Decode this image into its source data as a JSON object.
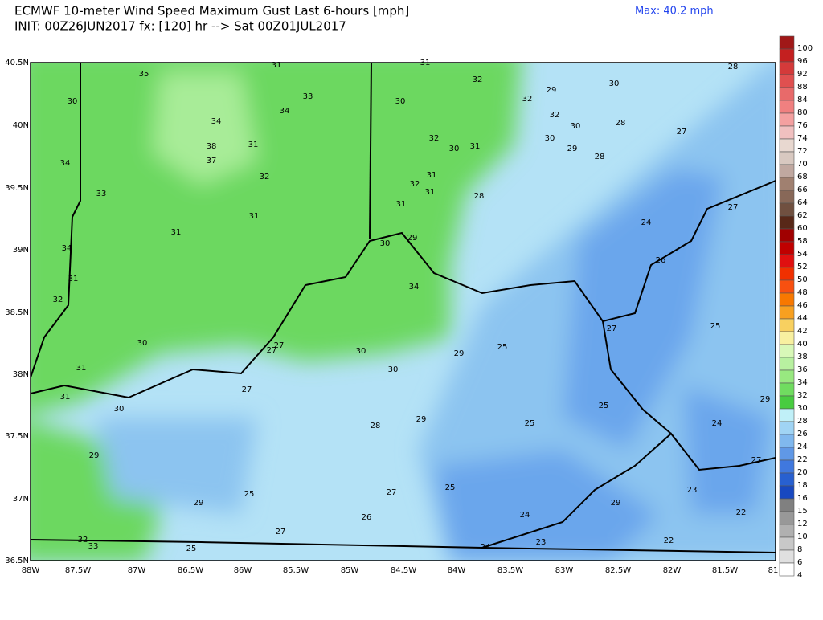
{
  "header": {
    "title_line1": "ECMWF 10-meter Wind Speed Maximum Gust Last 6-hours [mph]",
    "title_line2": "INIT: 00Z26JUN2017 fx: [120] hr --> Sat 00Z01JUL2017",
    "max": "Max: 40.2 mph"
  },
  "map": {
    "lat_labels": [
      "40.5N",
      "40N",
      "39.5N",
      "39N",
      "38.5N",
      "38N",
      "37.5N",
      "37N",
      "36.5N"
    ],
    "lon_labels": [
      "88W",
      "87.5W",
      "87W",
      "86.5W",
      "86W",
      "85.5W",
      "85W",
      "84.5W",
      "84W",
      "83.5W",
      "83W",
      "82.5W",
      "82W",
      "81.5W",
      "81"
    ],
    "values": [
      35,
      31,
      31,
      28,
      30,
      33,
      34,
      30,
      32,
      32,
      29,
      30,
      32,
      30,
      28,
      27,
      34,
      38,
      37,
      31,
      32,
      30,
      31,
      30,
      29,
      28,
      34,
      32,
      31,
      32,
      31,
      28,
      33,
      31,
      31,
      27,
      31,
      24,
      34,
      30,
      29,
      26,
      31,
      34,
      32,
      30,
      27,
      27,
      30,
      29,
      25,
      27,
      25,
      31,
      30,
      27,
      31,
      29,
      30,
      29,
      28,
      25,
      25,
      24,
      29,
      27,
      25,
      25,
      27,
      23,
      29,
      29,
      24,
      26,
      22,
      27,
      32,
      33,
      22,
      23,
      24,
      25
    ]
  },
  "colorbar": {
    "labels": [
      100,
      96,
      92,
      88,
      84,
      80,
      76,
      74,
      72,
      70,
      68,
      66,
      64,
      62,
      60,
      58,
      54,
      52,
      50,
      48,
      46,
      44,
      42,
      40,
      38,
      36,
      34,
      32,
      30,
      28,
      26,
      24,
      22,
      20,
      18,
      16,
      15,
      12,
      10,
      8,
      6,
      4
    ],
    "colors": [
      "#a01818",
      "#c42020",
      "#d43a3a",
      "#e05050",
      "#e86a6a",
      "#f08080",
      "#f4a0a0",
      "#f0c0c0",
      "#e8d8d0",
      "#d8c8c0",
      "#c0a8a0",
      "#a08070",
      "#886858",
      "#705040",
      "#582818",
      "#a00000",
      "#c00000",
      "#e01010",
      "#f03000",
      "#f85010",
      "#f87800",
      "#f8a020",
      "#f8d060",
      "#f8f0a0",
      "#d8f8b8",
      "#b8f0a0",
      "#98e880",
      "#70dc60",
      "#48cc40",
      "#c0f0f8",
      "#a0d4f4",
      "#80b8ee",
      "#6098e6",
      "#4078de",
      "#2860d0",
      "#1848c0",
      "#808080",
      "#989898",
      "#b0b0b0",
      "#c8c8c8",
      "#e0e0e0",
      "#ffffff"
    ]
  }
}
